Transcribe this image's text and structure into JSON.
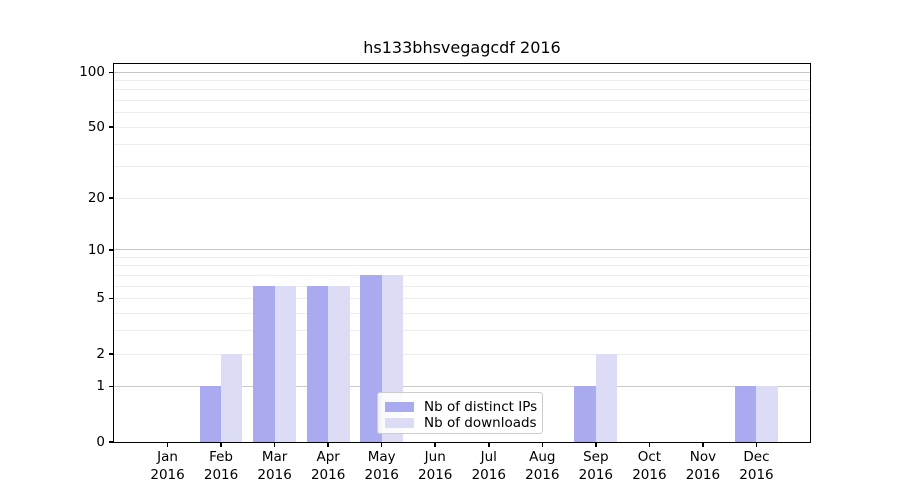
{
  "chart_data": {
    "type": "bar",
    "title": "hs133bhsvegagcdf 2016",
    "categories": [
      "Jan",
      "Feb",
      "Mar",
      "Apr",
      "May",
      "Jun",
      "Jul",
      "Aug",
      "Sep",
      "Oct",
      "Nov",
      "Dec"
    ],
    "xtick_year": "2016",
    "series": [
      {
        "name": "Nb of distinct IPs",
        "color": "#aaaaf0",
        "values": [
          0,
          1,
          6,
          6,
          7,
          0,
          0,
          0,
          1,
          0,
          0,
          1
        ]
      },
      {
        "name": "Nb of downloads",
        "color": "#dcdcf6",
        "values": [
          0,
          2,
          6,
          6,
          7,
          0,
          0,
          0,
          2,
          0,
          0,
          1
        ]
      }
    ],
    "yscale": "log1p",
    "ylim": [
      0,
      111
    ],
    "yticks": [
      0,
      1,
      2,
      5,
      10,
      20,
      50,
      100
    ],
    "gridlines": {
      "major": [
        1,
        10,
        100
      ],
      "minor": [
        2,
        3,
        4,
        5,
        6,
        7,
        8,
        9,
        20,
        30,
        40,
        50,
        60,
        70,
        80,
        90
      ],
      "major_color": "#c8c8c8",
      "minor_color": "#ededed"
    },
    "legend": {
      "position": "lower center",
      "labels": [
        "Nb of distinct IPs",
        "Nb of downloads"
      ]
    },
    "axis_color": "#000000",
    "bar_width_fraction": 0.4,
    "grid": true
  }
}
